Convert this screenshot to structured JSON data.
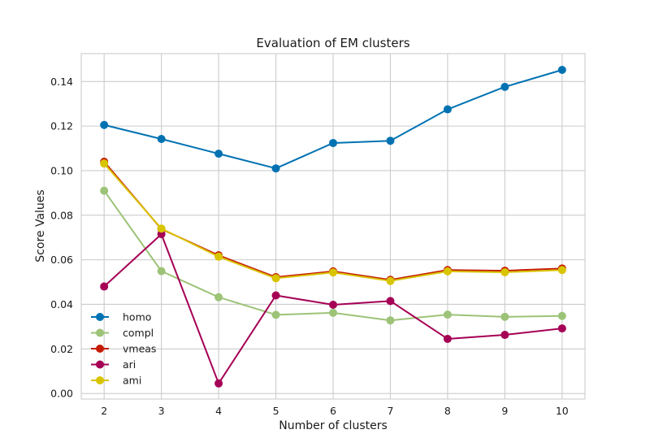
{
  "chart_data": {
    "type": "line",
    "title": "Evaluation of EM clusters",
    "xlabel": "Number of clusters",
    "ylabel": "Score Values",
    "x": [
      2,
      3,
      4,
      5,
      6,
      7,
      8,
      9,
      10
    ],
    "xlim": [
      1.6,
      10.4
    ],
    "ylim": [
      -0.0025,
      0.1525
    ],
    "yticks": [
      0.0,
      0.02,
      0.04,
      0.06,
      0.08,
      0.1,
      0.12,
      0.14
    ],
    "ytick_labels": [
      "0.00",
      "0.02",
      "0.04",
      "0.06",
      "0.08",
      "0.10",
      "0.12",
      "0.14"
    ],
    "grid": true,
    "legend_position": "lower-left",
    "series": [
      {
        "name": "homo",
        "color": "#0072b2",
        "values": [
          0.1205,
          0.1142,
          0.1076,
          0.101,
          0.1124,
          0.1134,
          0.1275,
          0.1376,
          0.1452
        ]
      },
      {
        "name": "compl",
        "color": "#9cc377",
        "values": [
          0.091,
          0.0549,
          0.0432,
          0.0353,
          0.0362,
          0.0328,
          0.0354,
          0.0344,
          0.0348
        ]
      },
      {
        "name": "vmeas",
        "color": "#c51b00",
        "values": [
          0.104,
          0.0738,
          0.062,
          0.0522,
          0.0548,
          0.051,
          0.0554,
          0.0551,
          0.0561
        ]
      },
      {
        "name": "ari",
        "color": "#a50055",
        "values": [
          0.048,
          0.0715,
          0.0045,
          0.044,
          0.0398,
          0.0415,
          0.0245,
          0.0263,
          0.0292
        ]
      },
      {
        "name": "ami",
        "color": "#d9c400",
        "values": [
          0.1032,
          0.074,
          0.0614,
          0.0517,
          0.0543,
          0.0505,
          0.0548,
          0.0544,
          0.0554
        ]
      }
    ]
  }
}
